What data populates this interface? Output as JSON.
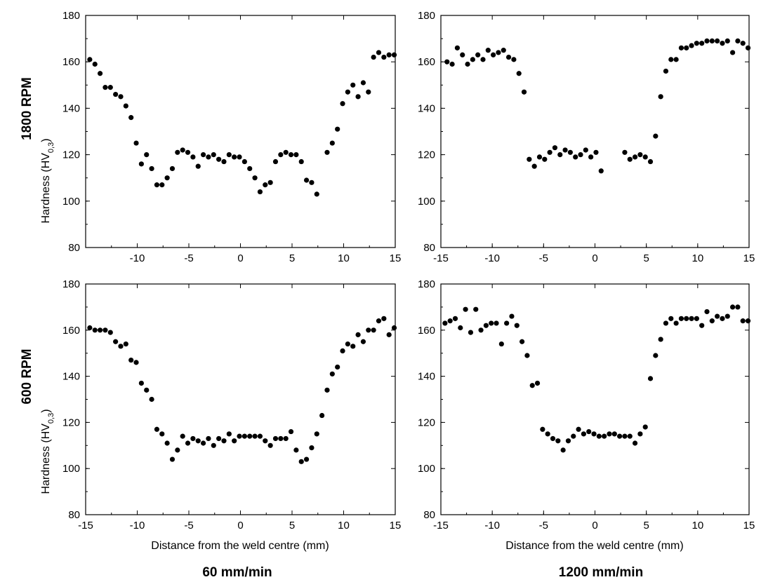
{
  "row_labels": [
    "1800 RPM",
    "600 RPM"
  ],
  "col_labels": [
    "60 mm/min",
    "1200 mm/min"
  ],
  "ylabel_main": "Hardness (HV",
  "ylabel_sub": "0,3",
  "ylabel_close": ")",
  "xlabel": "Distance from the weld centre (mm)",
  "chart_data": [
    {
      "type": "scatter",
      "row": "1800 RPM",
      "col": "60 mm/min",
      "xlim": [
        -15,
        15
      ],
      "ylim": [
        80,
        180
      ],
      "xticks": [
        "-10",
        "-5",
        "0",
        "5",
        "10",
        "15"
      ],
      "yticks": [
        "80",
        "100",
        "120",
        "140",
        "160",
        "180"
      ],
      "x": [
        -14.6,
        -14.1,
        -13.6,
        -13.1,
        -12.6,
        -12.1,
        -11.6,
        -11.1,
        -10.6,
        -10.1,
        -9.6,
        -9.1,
        -8.6,
        -8.1,
        -7.6,
        -7.1,
        -6.6,
        -6.1,
        -5.6,
        -5.1,
        -4.6,
        -4.1,
        -3.6,
        -3.1,
        -2.6,
        -2.1,
        -1.6,
        -1.1,
        -0.6,
        -0.1,
        0.4,
        0.9,
        1.4,
        1.9,
        2.4,
        2.9,
        3.4,
        3.9,
        4.4,
        4.9,
        5.4,
        5.9,
        6.4,
        6.9,
        7.4,
        8.4,
        8.9,
        9.4,
        9.9,
        10.4,
        10.9,
        11.4,
        11.9,
        12.4,
        12.9,
        13.4,
        13.9,
        14.4,
        14.9
      ],
      "y": [
        161,
        159,
        155,
        149,
        149,
        146,
        145,
        141,
        136,
        125,
        116,
        120,
        114,
        107,
        107,
        110,
        114,
        121,
        122,
        121,
        119,
        115,
        120,
        119,
        120,
        118,
        117,
        120,
        119,
        119,
        117,
        114,
        110,
        104,
        107,
        108,
        117,
        120,
        121,
        120,
        120,
        117,
        109,
        108,
        103,
        121,
        125,
        131,
        142,
        147,
        150,
        145,
        151,
        147,
        162,
        164,
        162,
        163,
        163
      ]
    },
    {
      "type": "scatter",
      "row": "1800 RPM",
      "col": "1200 mm/min",
      "xlim": [
        -15,
        15
      ],
      "ylim": [
        80,
        180
      ],
      "xticks": [
        "-15",
        "-10",
        "-5",
        "0",
        "5",
        "10",
        "15"
      ],
      "yticks": [
        "80",
        "100",
        "120",
        "140",
        "160",
        "180"
      ],
      "x": [
        -14.4,
        -13.9,
        -13.4,
        -12.9,
        -12.4,
        -11.9,
        -11.4,
        -10.9,
        -10.4,
        -9.9,
        -9.4,
        -8.9,
        -8.4,
        -7.9,
        -7.4,
        -6.9,
        -6.4,
        -5.9,
        -5.4,
        -4.9,
        -4.4,
        -3.9,
        -3.4,
        -2.9,
        -2.4,
        -1.9,
        -1.4,
        -0.9,
        -0.4,
        0.1,
        0.6,
        2.9,
        3.4,
        3.9,
        4.4,
        4.9,
        5.4,
        5.9,
        6.4,
        6.9,
        7.4,
        7.9,
        8.4,
        8.9,
        9.4,
        9.9,
        10.4,
        10.9,
        11.4,
        11.9,
        12.4,
        12.9,
        13.4,
        13.9,
        14.4,
        14.9
      ],
      "y": [
        160,
        159,
        166,
        163,
        159,
        161,
        163,
        161,
        165,
        163,
        164,
        165,
        162,
        161,
        155,
        147,
        118,
        115,
        119,
        118,
        121,
        123,
        120,
        122,
        121,
        119,
        120,
        122,
        119,
        121,
        113,
        121,
        118,
        119,
        120,
        119,
        117,
        128,
        145,
        156,
        161,
        161,
        166,
        166,
        167,
        168,
        168,
        169,
        169,
        169,
        168,
        169,
        164,
        169,
        168,
        166
      ]
    },
    {
      "type": "scatter",
      "row": "600 RPM",
      "col": "60 mm/min",
      "xlim": [
        -15,
        15
      ],
      "ylim": [
        80,
        180
      ],
      "xticks": [
        "-15",
        "-10",
        "-5",
        "0",
        "5",
        "10",
        "15"
      ],
      "yticks": [
        "80",
        "100",
        "120",
        "140",
        "160",
        "180"
      ],
      "x": [
        -14.6,
        -14.1,
        -13.6,
        -13.1,
        -12.6,
        -12.1,
        -11.6,
        -11.1,
        -10.6,
        -10.1,
        -9.6,
        -9.1,
        -8.6,
        -8.1,
        -7.6,
        -7.1,
        -6.6,
        -6.1,
        -5.6,
        -5.1,
        -4.6,
        -4.1,
        -3.6,
        -3.1,
        -2.6,
        -2.1,
        -1.6,
        -1.1,
        -0.6,
        -0.1,
        0.4,
        0.9,
        1.4,
        1.9,
        2.4,
        2.9,
        3.4,
        3.9,
        4.4,
        4.9,
        5.4,
        5.9,
        6.4,
        6.9,
        7.4,
        7.9,
        8.4,
        8.9,
        9.4,
        9.9,
        10.4,
        10.9,
        11.4,
        11.9,
        12.4,
        12.9,
        13.4,
        13.9,
        14.4,
        14.9
      ],
      "y": [
        161,
        160,
        160,
        160,
        159,
        155,
        153,
        154,
        147,
        146,
        137,
        134,
        130,
        117,
        115,
        111,
        104,
        108,
        114,
        111,
        113,
        112,
        111,
        113,
        110,
        113,
        112,
        115,
        112,
        114,
        114,
        114,
        114,
        114,
        112,
        110,
        113,
        113,
        113,
        116,
        108,
        103,
        104,
        109,
        115,
        123,
        134,
        141,
        144,
        151,
        154,
        153,
        158,
        155,
        160,
        160,
        164,
        165,
        158,
        161
      ]
    },
    {
      "type": "scatter",
      "row": "600 RPM",
      "col": "1200 mm/min",
      "xlim": [
        -15,
        15
      ],
      "ylim": [
        80,
        180
      ],
      "xticks": [
        "-15",
        "-10",
        "-5",
        "0",
        "5",
        "10",
        "15"
      ],
      "yticks": [
        "80",
        "100",
        "120",
        "140",
        "160",
        "180"
      ],
      "x": [
        -14.6,
        -14.1,
        -13.6,
        -13.1,
        -12.6,
        -12.1,
        -11.6,
        -11.1,
        -10.6,
        -10.1,
        -9.6,
        -9.1,
        -8.6,
        -8.1,
        -7.6,
        -7.1,
        -6.6,
        -6.1,
        -5.6,
        -5.1,
        -4.6,
        -4.1,
        -3.6,
        -3.1,
        -2.6,
        -2.1,
        -1.6,
        -1.1,
        -0.6,
        -0.1,
        0.4,
        0.9,
        1.4,
        1.9,
        2.4,
        2.9,
        3.4,
        3.9,
        4.4,
        4.9,
        5.4,
        5.9,
        6.4,
        6.9,
        7.4,
        7.9,
        8.4,
        8.9,
        9.4,
        9.9,
        10.4,
        10.9,
        11.4,
        11.9,
        12.4,
        12.9,
        13.4,
        13.9,
        14.4,
        14.9
      ],
      "y": [
        163,
        164,
        165,
        161,
        169,
        159,
        169,
        160,
        162,
        163,
        163,
        154,
        163,
        166,
        162,
        155,
        149,
        136,
        137,
        117,
        115,
        113,
        112,
        108,
        112,
        114,
        117,
        115,
        116,
        115,
        114,
        114,
        115,
        115,
        114,
        114,
        114,
        111,
        115,
        118,
        139,
        149,
        156,
        163,
        165,
        163,
        165,
        165,
        165,
        165,
        162,
        168,
        164,
        166,
        165,
        166,
        170,
        170,
        164,
        164
      ]
    }
  ]
}
